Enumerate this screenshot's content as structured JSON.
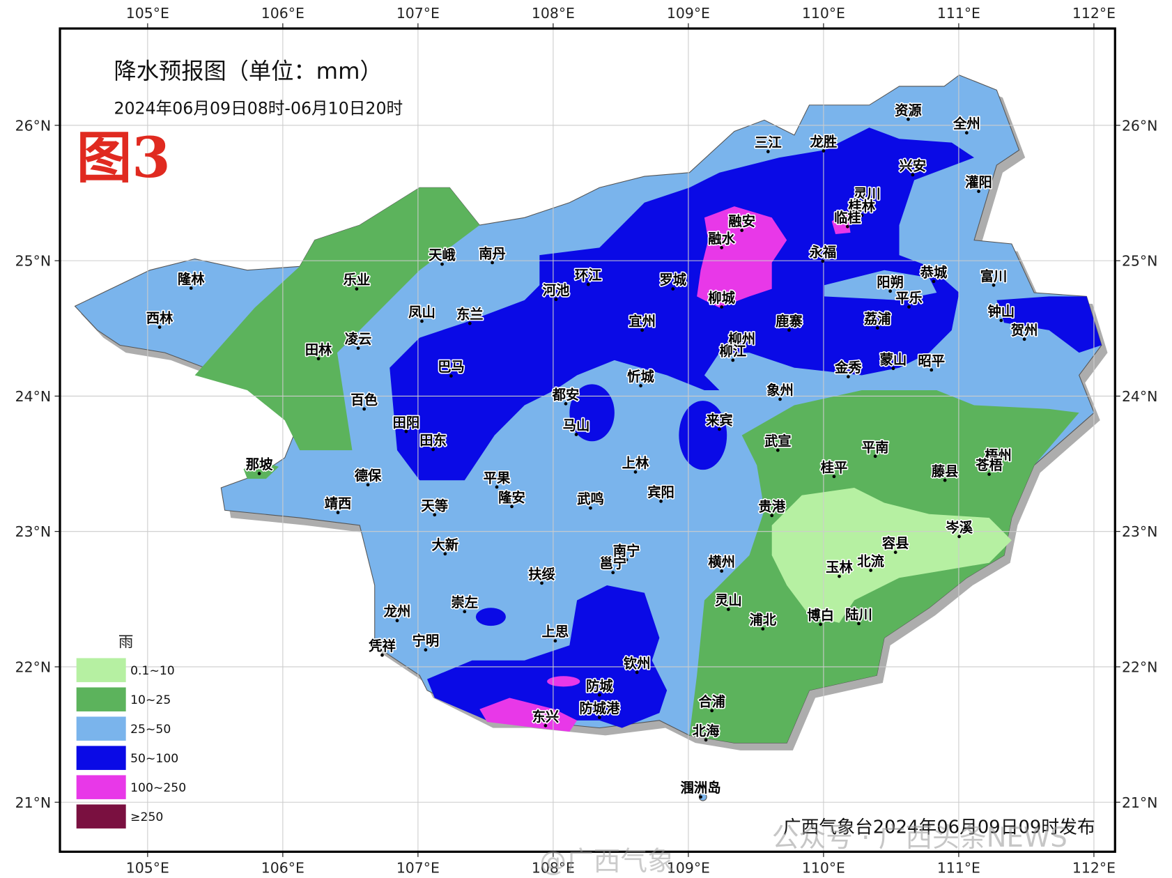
{
  "title": "降水预报图（单位：mm）",
  "subtitle": "2024年06月09日08时-06月10日20时",
  "figure_label": "图3",
  "lon_ticks": [
    "105°E",
    "106°E",
    "107°E",
    "108°E",
    "109°E",
    "110°E",
    "111°E",
    "112°E"
  ],
  "lat_ticks": [
    "26°N",
    "25°N",
    "24°N",
    "23°N",
    "22°N",
    "21°N"
  ],
  "legend": {
    "title": "雨",
    "items": [
      {
        "label": "0.1~10",
        "color": "#b6f0a2"
      },
      {
        "label": "10~25",
        "color": "#5cb35c"
      },
      {
        "label": "25~50",
        "color": "#7ab4ec"
      },
      {
        "label": "50~100",
        "color": "#0a0ae6"
      },
      {
        "label": "100~250",
        "color": "#e838e8"
      },
      {
        "label": "≥250",
        "color": "#7a1040"
      }
    ]
  },
  "cities": [
    "隆林",
    "西林",
    "乐业",
    "田林",
    "凌云",
    "百色",
    "那坡",
    "德保",
    "靖西",
    "天峨",
    "南丹",
    "凤山",
    "东兰",
    "巴马",
    "田阳",
    "田东",
    "天等",
    "平果",
    "隆安",
    "大新",
    "龙州",
    "崇左",
    "凭祥",
    "宁明",
    "扶绥",
    "上思",
    "环江",
    "河池",
    "宜州",
    "罗城",
    "都安",
    "马山",
    "忻城",
    "上林",
    "武鸣",
    "宾阳",
    "南宁",
    "邕宁",
    "横州",
    "灵山",
    "钦州",
    "防城",
    "防城港",
    "东兴",
    "合浦",
    "北海",
    "涠洲岛",
    "浦北",
    "博白",
    "陆川",
    "玉林",
    "北流",
    "容县",
    "岑溪",
    "贵港",
    "桂平",
    "平南",
    "武宣",
    "藤县",
    "梧州",
    "苍梧",
    "象州",
    "来宾",
    "金秀",
    "蒙山",
    "昭平",
    "荔浦",
    "鹿寨",
    "柳州",
    "柳江",
    "柳城",
    "融水",
    "融安",
    "三江",
    "龙胜",
    "资源",
    "全州",
    "兴安",
    "灌阳",
    "灵川",
    "桂林",
    "临桂",
    "永福",
    "阳朔",
    "平乐",
    "恭城",
    "富川",
    "钟山",
    "贺州"
  ],
  "footer": "广西气象台2024年06月09日09时发布",
  "watermarks": [
    "公众号 · 广西头条NEWS",
    "@广西气象"
  ]
}
